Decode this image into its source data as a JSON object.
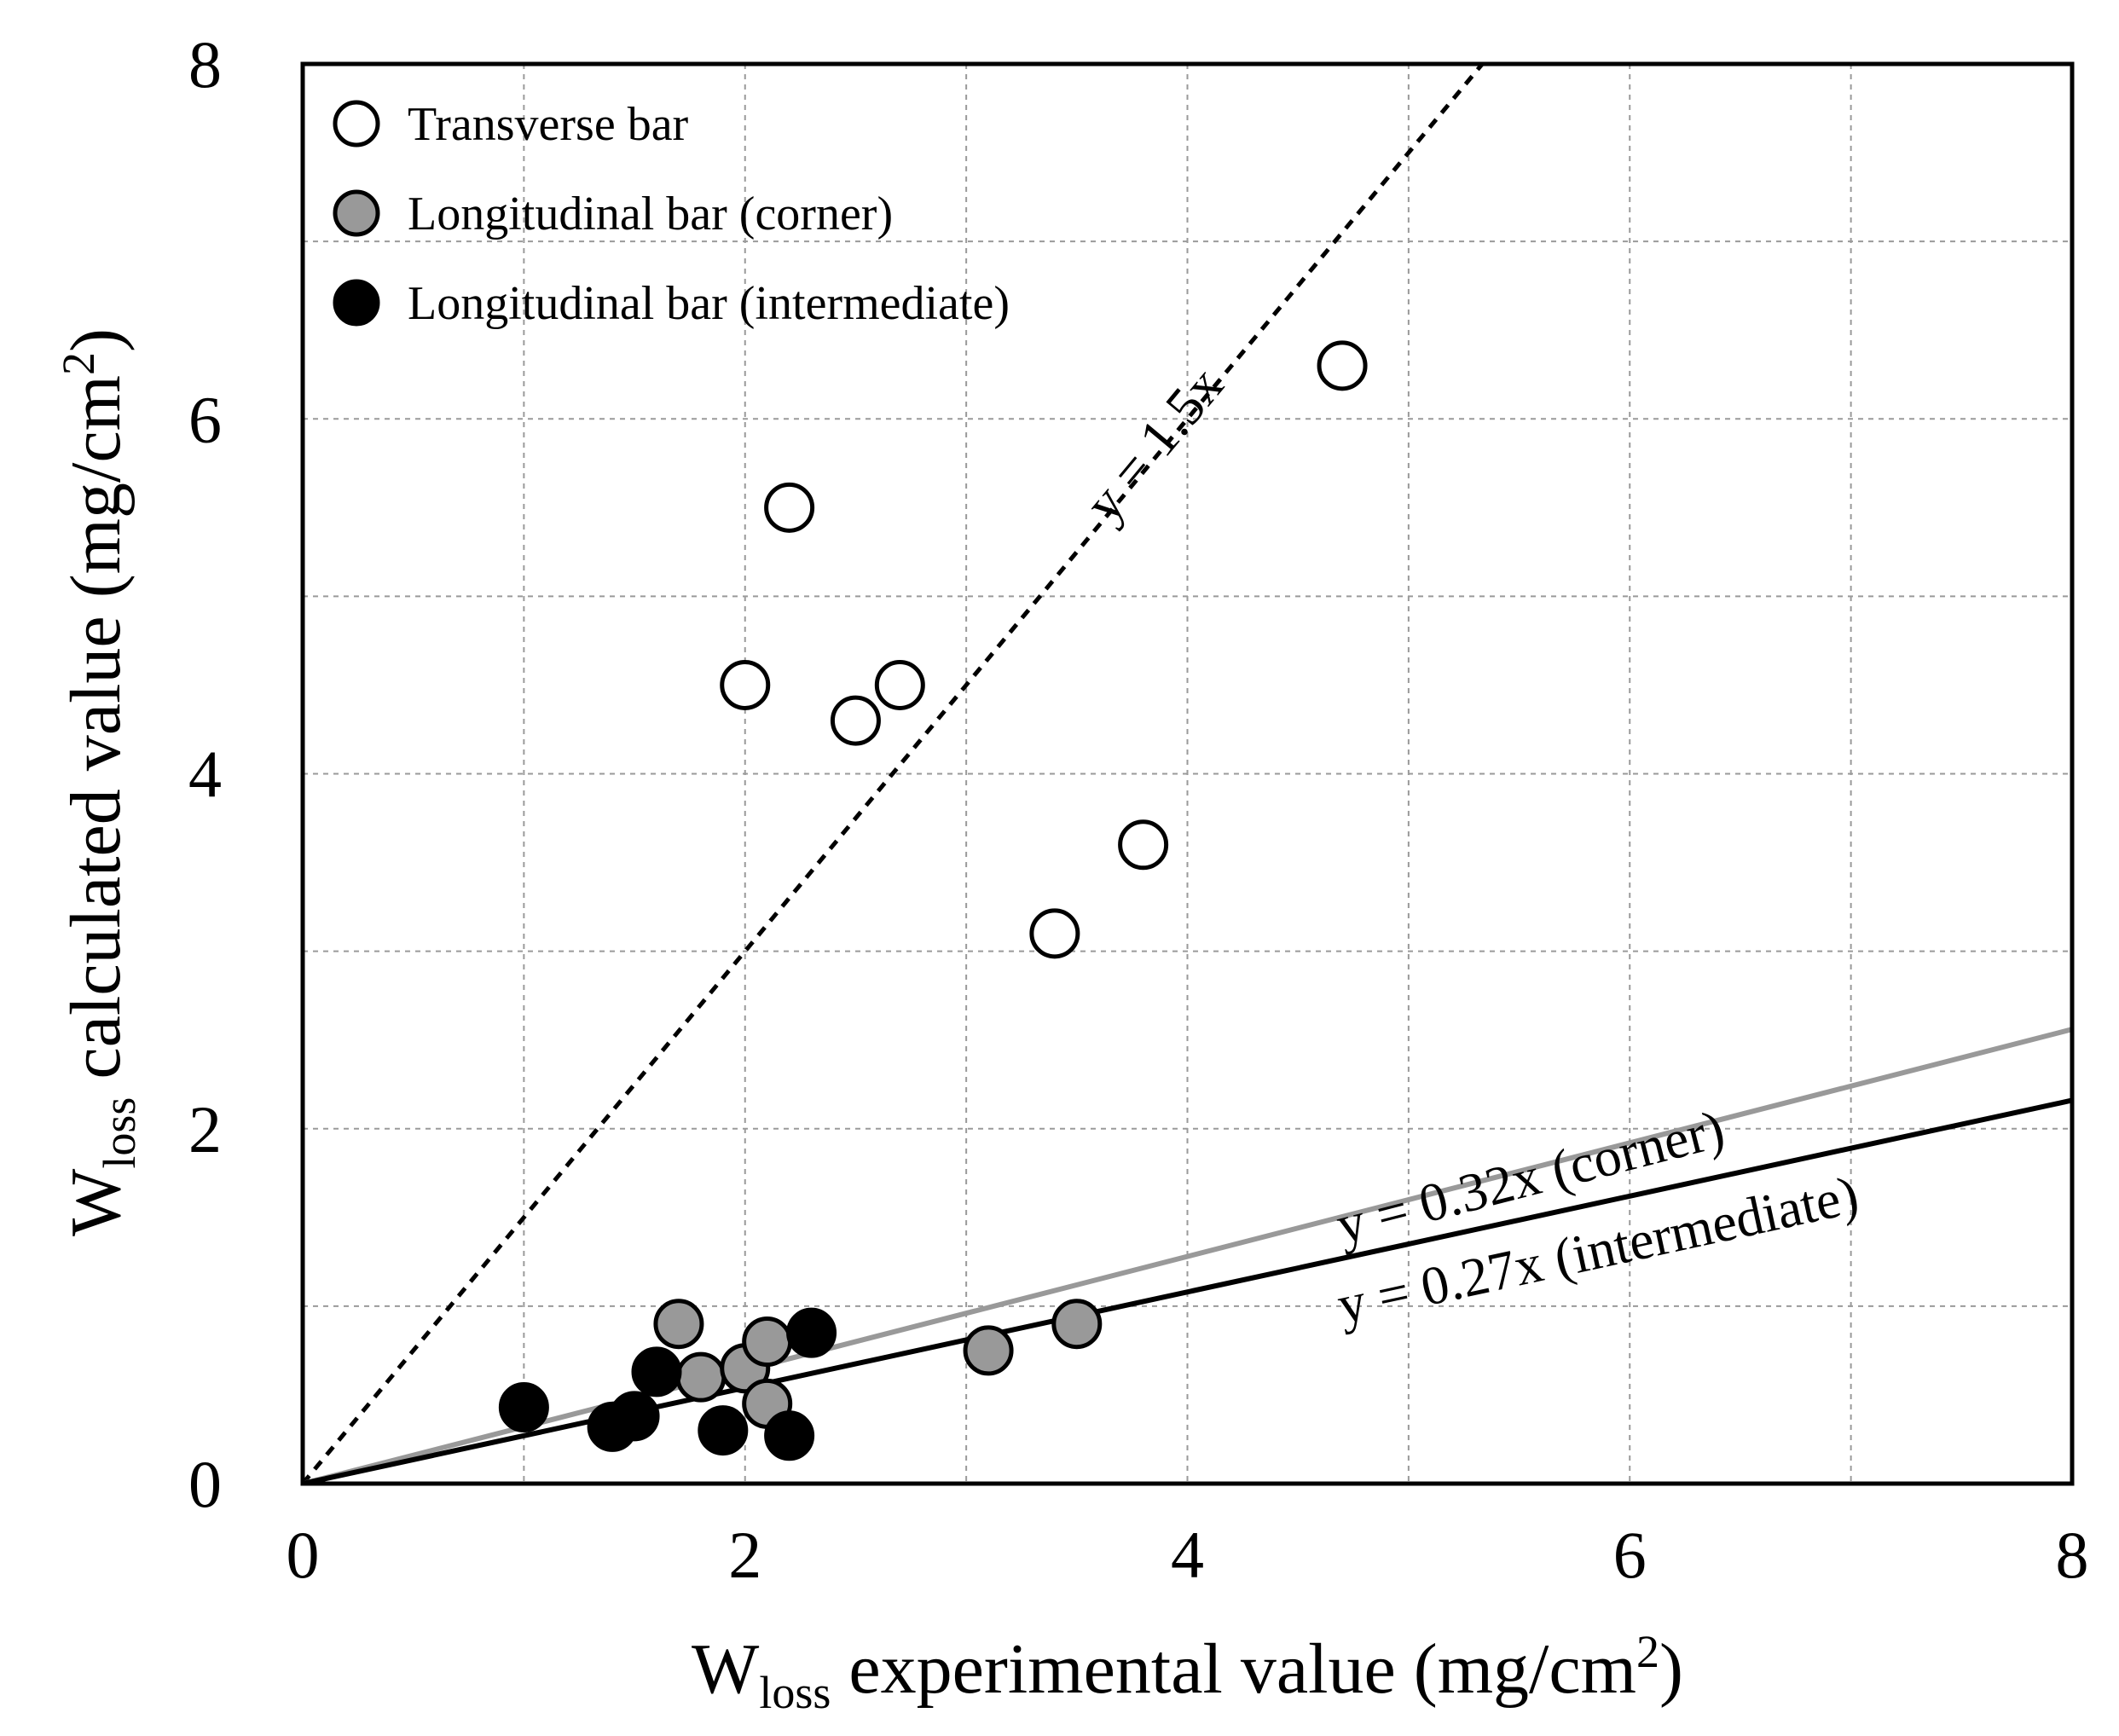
{
  "chart_data": {
    "type": "scatter",
    "title": "",
    "xlabel": {
      "main": "W",
      "sub": "loss",
      "rest": " experimental value (mg/cm",
      "sup": "2",
      "end": ")"
    },
    "ylabel": {
      "main": "W",
      "sub": "loss",
      "rest": " calculated value (mg/cm",
      "sup": "2",
      "end": ")"
    },
    "xlim": [
      0,
      8
    ],
    "ylim": [
      0,
      8
    ],
    "xticks": [
      0,
      2,
      4,
      6,
      8
    ],
    "yticks": [
      0,
      2,
      4,
      6,
      8
    ],
    "grid": true,
    "legend_position": "top-left",
    "series": [
      {
        "name": "Transverse bar",
        "fill": "#ffffff",
        "points": [
          [
            2.2,
            5.5
          ],
          [
            2.0,
            4.5
          ],
          [
            2.5,
            4.3
          ],
          [
            2.7,
            4.5
          ],
          [
            3.4,
            3.1
          ],
          [
            3.8,
            3.6
          ],
          [
            4.7,
            6.3
          ]
        ]
      },
      {
        "name": "Longitudinal bar (corner)",
        "fill": "#999999",
        "points": [
          [
            1.7,
            0.9
          ],
          [
            1.8,
            0.6
          ],
          [
            2.0,
            0.65
          ],
          [
            2.1,
            0.8
          ],
          [
            2.1,
            0.45
          ],
          [
            3.1,
            0.75
          ],
          [
            3.5,
            0.9
          ]
        ]
      },
      {
        "name": "Longitudinal bar (intermediate)",
        "fill": "#000000",
        "points": [
          [
            1.0,
            0.43
          ],
          [
            1.4,
            0.32
          ],
          [
            1.5,
            0.38
          ],
          [
            1.6,
            0.63
          ],
          [
            1.9,
            0.3
          ],
          [
            2.2,
            0.27
          ],
          [
            2.3,
            0.85
          ]
        ]
      }
    ],
    "lines": [
      {
        "name": "dashed-1.5x",
        "slope": 1.5,
        "label": "y = 1.5x",
        "color": "#000000",
        "dashed": true,
        "label_at": [
          3.65,
          5.4
        ]
      },
      {
        "name": "corner-0.32x",
        "slope": 0.32,
        "label": "y = 0.32x (corner)",
        "color": "#999999",
        "dashed": false,
        "label_at": [
          4.7,
          1.35
        ]
      },
      {
        "name": "intermediate-0.27x",
        "slope": 0.27,
        "label": "y = 0.27x (intermediate)",
        "color": "#000000",
        "dashed": false,
        "label_at": [
          4.7,
          0.9
        ]
      }
    ]
  }
}
